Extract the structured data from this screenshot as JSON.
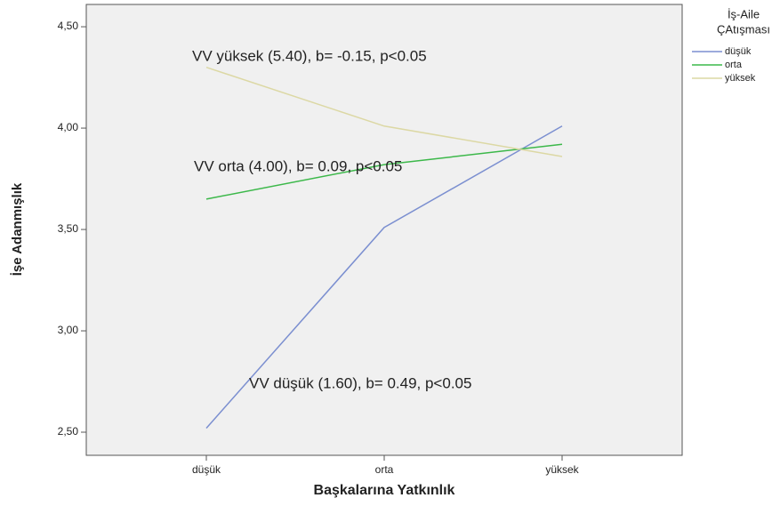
{
  "chart_data": {
    "type": "line",
    "x_label": "Başkalarına Yatkınlık",
    "y_label": "İşe Adanmışlık",
    "legend_title": [
      "İş-Aile",
      "ÇAtışması"
    ],
    "legend_position": "right",
    "categories": [
      "düşük",
      "orta",
      "yüksek"
    ],
    "series": [
      {
        "name": "düşük",
        "color": "#7b8fd0",
        "values": [
          2.52,
          3.51,
          4.01
        ]
      },
      {
        "name": "orta",
        "color": "#3cb84a",
        "values": [
          3.65,
          3.82,
          3.92
        ]
      },
      {
        "name": "yüksek",
        "color": "#dcd8a4",
        "values": [
          4.3,
          4.01,
          3.86
        ]
      }
    ],
    "annotations": [
      "VV yüksek (5.40), b= -0.15, p<0.05",
      "VV orta (4.00), b= 0.09, p<0.05",
      "VV düşük (1.60), b= 0.49, p<0.05"
    ],
    "ylim": [
      2.386,
      4.61
    ],
    "yticks": [
      {
        "value": 2.5,
        "label": "2,50"
      },
      {
        "value": 3.0,
        "label": "3,00"
      },
      {
        "value": 3.5,
        "label": "3,50"
      },
      {
        "value": 4.0,
        "label": "4,00"
      },
      {
        "value": 4.5,
        "label": "4,50"
      }
    ],
    "grid": false
  }
}
